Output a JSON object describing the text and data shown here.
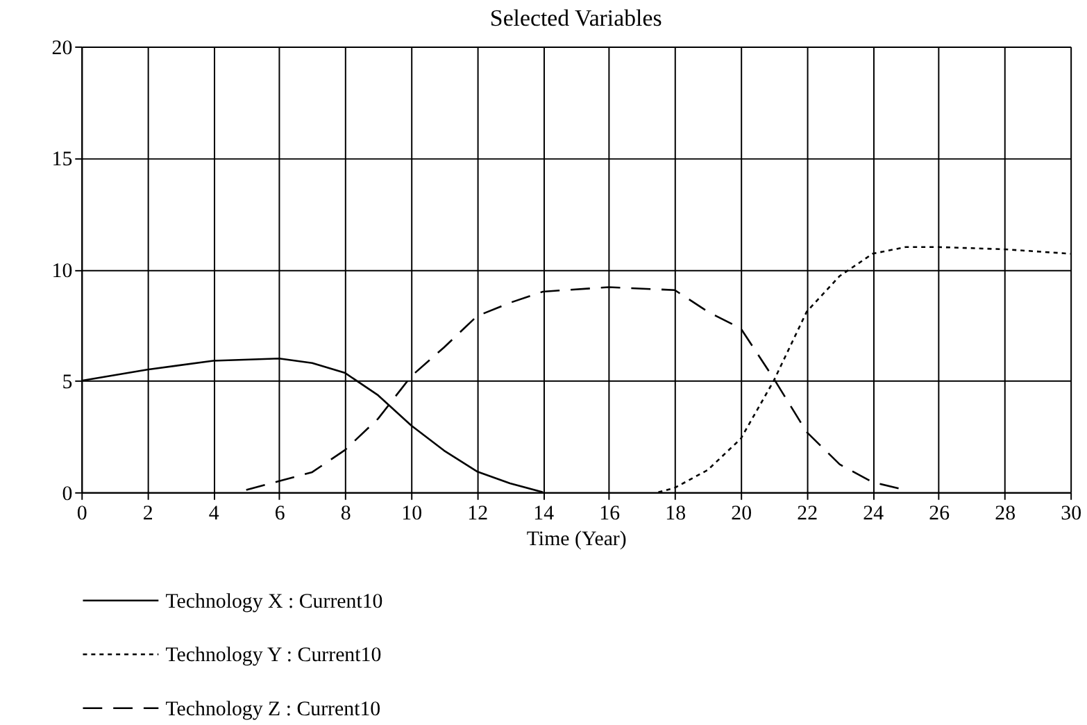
{
  "chart_data": {
    "type": "line",
    "title": "Selected Variables",
    "xlabel": "Time (Year)",
    "xlim": [
      0,
      30
    ],
    "xticks": [
      0,
      2,
      4,
      6,
      8,
      10,
      12,
      14,
      16,
      18,
      20,
      22,
      24,
      26,
      28,
      30
    ],
    "ylim": [
      0,
      20
    ],
    "yticks": [
      0,
      5,
      10,
      15,
      20
    ],
    "grid": true,
    "legend": "bottom",
    "marker": "none",
    "series": [
      {
        "name": "Technology X : Current10",
        "color": "#000000",
        "line_style": "solid",
        "x": [
          0,
          2,
          4,
          6,
          7,
          8,
          9,
          10,
          11,
          12,
          13,
          14
        ],
        "values": [
          5.0,
          5.5,
          5.9,
          6.0,
          5.8,
          5.35,
          4.35,
          3.0,
          1.87,
          0.93,
          0.4,
          0
        ]
      },
      {
        "name": "Technology Y : Current10",
        "color": "#000000",
        "line_style": "dotted",
        "x": [
          17.5,
          18,
          19,
          20,
          21,
          22,
          23,
          24,
          25,
          26,
          28,
          30
        ],
        "values": [
          0,
          0.2,
          1.0,
          2.4,
          5.0,
          8.1,
          9.7,
          10.7,
          11.0,
          11.0,
          10.9,
          10.7
        ]
      },
      {
        "name": "Technology Z : Current10",
        "color": "#000000",
        "line_style": "dashed",
        "x": [
          5,
          6,
          7,
          8,
          9,
          10,
          11,
          12,
          13,
          14,
          16,
          18,
          19,
          20,
          21,
          22,
          23,
          24,
          25
        ],
        "values": [
          0.1,
          0.5,
          0.9,
          1.9,
          3.3,
          5.2,
          6.5,
          7.9,
          8.5,
          9.0,
          9.2,
          9.07,
          8.1,
          7.35,
          5.1,
          2.7,
          1.25,
          0.45,
          0.1
        ]
      }
    ]
  }
}
